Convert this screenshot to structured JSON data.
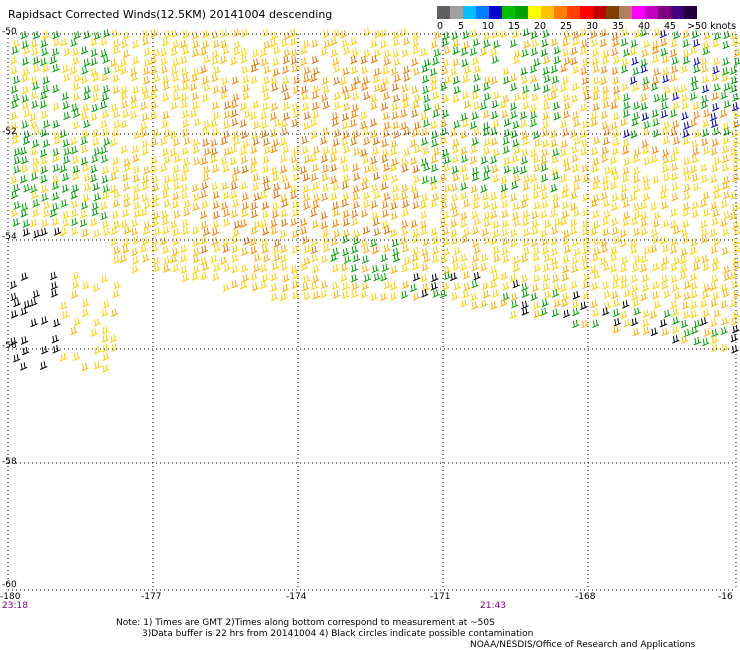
{
  "title": "Rapidsact Corrected Winds(12.5KM) 20141004 descending",
  "legend": {
    "colors": [
      "#606060",
      "#a0a0a0",
      "#00c0ff",
      "#0080ff",
      "#0000d0",
      "#00c000",
      "#00a000",
      "#ffff00",
      "#ffc000",
      "#ff8000",
      "#ff4000",
      "#ff0000",
      "#c00000",
      "#804000",
      "#b08060",
      "#ff00ff",
      "#c000c0",
      "#800080",
      "#400080",
      "#200040"
    ],
    "labels": [
      "0",
      "5",
      "10",
      "15",
      "20",
      "25",
      "30",
      "35",
      "40",
      "45",
      ">50 knots"
    ]
  },
  "axes": {
    "lat_labels": [
      "-50",
      "-52",
      "-54",
      "-56",
      "-58",
      "-60"
    ],
    "lon_labels": [
      "-180",
      "-177",
      "-174",
      "-171",
      "-168",
      "-16"
    ]
  },
  "times": {
    "left": "23:18",
    "middle": "21:43"
  },
  "notes": {
    "line1": "Note: 1) Times are GMT 2)Times along bottom correspond to measurement at ~50S",
    "line2": "3)Data buffer is 22 hrs from 20141004 4) Black circles indicate possible contamination",
    "line3": "NOAA/NESDIS/Office of Research and Applications"
  }
}
